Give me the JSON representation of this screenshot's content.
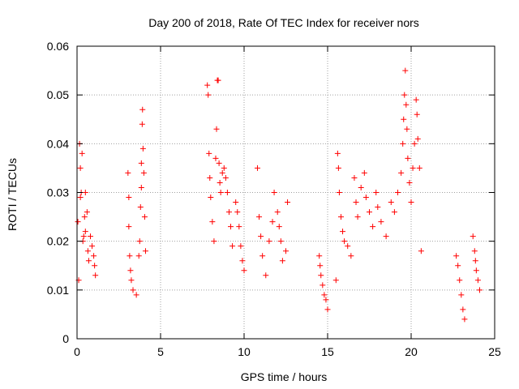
{
  "chart_data": {
    "type": "scatter",
    "title": "Day 200 of 2018, Rate Of TEC Index for receiver nors",
    "xlabel": "GPS time / hours",
    "ylabel": "ROTI / TECUs",
    "xlim": [
      0,
      25
    ],
    "ylim": [
      0,
      0.06
    ],
    "xticks": [
      "0",
      "5",
      "10",
      "15",
      "20",
      "25"
    ],
    "yticks": [
      "0",
      "0.01",
      "0.02",
      "0.03",
      "0.04",
      "0.05",
      "0.06"
    ],
    "grid": true,
    "marker": "+",
    "color": "#ff0000",
    "series": [
      {
        "points": [
          [
            0.05,
            0.024
          ],
          [
            0.1,
            0.012
          ],
          [
            0.15,
            0.04
          ],
          [
            0.2,
            0.035
          ],
          [
            0.2,
            0.029
          ],
          [
            0.25,
            0.03
          ],
          [
            0.3,
            0.038
          ],
          [
            0.35,
            0.02
          ],
          [
            0.4,
            0.021
          ],
          [
            0.45,
            0.025
          ],
          [
            0.5,
            0.022
          ],
          [
            0.5,
            0.03
          ],
          [
            0.6,
            0.026
          ],
          [
            0.65,
            0.018
          ],
          [
            0.7,
            0.016
          ],
          [
            0.8,
            0.021
          ],
          [
            0.9,
            0.019
          ],
          [
            1.0,
            0.017
          ],
          [
            1.05,
            0.015
          ],
          [
            1.1,
            0.013
          ],
          [
            3.05,
            0.034
          ],
          [
            3.1,
            0.029
          ],
          [
            3.1,
            0.023
          ],
          [
            3.15,
            0.017
          ],
          [
            3.2,
            0.014
          ],
          [
            3.25,
            0.012
          ],
          [
            3.35,
            0.01
          ],
          [
            3.55,
            0.009
          ],
          [
            3.7,
            0.017
          ],
          [
            3.75,
            0.02
          ],
          [
            3.8,
            0.027
          ],
          [
            3.85,
            0.031
          ],
          [
            3.85,
            0.036
          ],
          [
            3.9,
            0.044
          ],
          [
            3.92,
            0.047
          ],
          [
            3.95,
            0.039
          ],
          [
            4.0,
            0.034
          ],
          [
            4.05,
            0.025
          ],
          [
            4.1,
            0.018
          ],
          [
            7.8,
            0.052
          ],
          [
            7.85,
            0.05
          ],
          [
            7.9,
            0.038
          ],
          [
            7.95,
            0.033
          ],
          [
            8.0,
            0.029
          ],
          [
            8.1,
            0.024
          ],
          [
            8.2,
            0.02
          ],
          [
            8.3,
            0.037
          ],
          [
            8.35,
            0.043
          ],
          [
            8.4,
            0.053
          ],
          [
            8.45,
            0.053
          ],
          [
            8.5,
            0.036
          ],
          [
            8.55,
            0.032
          ],
          [
            8.6,
            0.03
          ],
          [
            8.7,
            0.034
          ],
          [
            8.8,
            0.035
          ],
          [
            8.9,
            0.033
          ],
          [
            9.0,
            0.03
          ],
          [
            9.1,
            0.026
          ],
          [
            9.2,
            0.023
          ],
          [
            9.3,
            0.019
          ],
          [
            9.5,
            0.028
          ],
          [
            9.6,
            0.026
          ],
          [
            9.7,
            0.023
          ],
          [
            9.8,
            0.019
          ],
          [
            9.9,
            0.016
          ],
          [
            10.0,
            0.014
          ],
          [
            10.8,
            0.035
          ],
          [
            10.9,
            0.025
          ],
          [
            11.0,
            0.021
          ],
          [
            11.1,
            0.017
          ],
          [
            11.3,
            0.013
          ],
          [
            11.5,
            0.02
          ],
          [
            11.7,
            0.024
          ],
          [
            11.8,
            0.03
          ],
          [
            12.0,
            0.026
          ],
          [
            12.1,
            0.023
          ],
          [
            12.2,
            0.02
          ],
          [
            12.3,
            0.016
          ],
          [
            12.5,
            0.018
          ],
          [
            12.6,
            0.028
          ],
          [
            14.5,
            0.017
          ],
          [
            14.55,
            0.015
          ],
          [
            14.6,
            0.013
          ],
          [
            14.7,
            0.011
          ],
          [
            14.8,
            0.009
          ],
          [
            14.9,
            0.008
          ],
          [
            15.0,
            0.006
          ],
          [
            15.5,
            0.012
          ],
          [
            15.6,
            0.038
          ],
          [
            15.65,
            0.035
          ],
          [
            15.7,
            0.03
          ],
          [
            15.8,
            0.025
          ],
          [
            15.9,
            0.022
          ],
          [
            16.0,
            0.02
          ],
          [
            16.2,
            0.019
          ],
          [
            16.4,
            0.017
          ],
          [
            16.6,
            0.033
          ],
          [
            16.7,
            0.028
          ],
          [
            16.8,
            0.025
          ],
          [
            17.0,
            0.031
          ],
          [
            17.2,
            0.034
          ],
          [
            17.3,
            0.029
          ],
          [
            17.5,
            0.026
          ],
          [
            17.7,
            0.023
          ],
          [
            17.9,
            0.03
          ],
          [
            18.0,
            0.027
          ],
          [
            18.2,
            0.024
          ],
          [
            18.5,
            0.021
          ],
          [
            18.8,
            0.028
          ],
          [
            19.0,
            0.026
          ],
          [
            19.2,
            0.03
          ],
          [
            19.4,
            0.034
          ],
          [
            19.5,
            0.04
          ],
          [
            19.55,
            0.045
          ],
          [
            19.6,
            0.05
          ],
          [
            19.65,
            0.055
          ],
          [
            19.7,
            0.048
          ],
          [
            19.75,
            0.043
          ],
          [
            19.8,
            0.037
          ],
          [
            19.9,
            0.032
          ],
          [
            20.0,
            0.028
          ],
          [
            20.1,
            0.035
          ],
          [
            20.2,
            0.04
          ],
          [
            20.3,
            0.049
          ],
          [
            20.35,
            0.046
          ],
          [
            20.4,
            0.041
          ],
          [
            20.5,
            0.035
          ],
          [
            20.6,
            0.018
          ],
          [
            22.7,
            0.017
          ],
          [
            22.8,
            0.015
          ],
          [
            22.9,
            0.012
          ],
          [
            23.0,
            0.009
          ],
          [
            23.1,
            0.006
          ],
          [
            23.2,
            0.004
          ],
          [
            23.7,
            0.021
          ],
          [
            23.8,
            0.018
          ],
          [
            23.85,
            0.016
          ],
          [
            23.9,
            0.014
          ],
          [
            24.0,
            0.012
          ],
          [
            24.1,
            0.01
          ]
        ]
      }
    ]
  }
}
